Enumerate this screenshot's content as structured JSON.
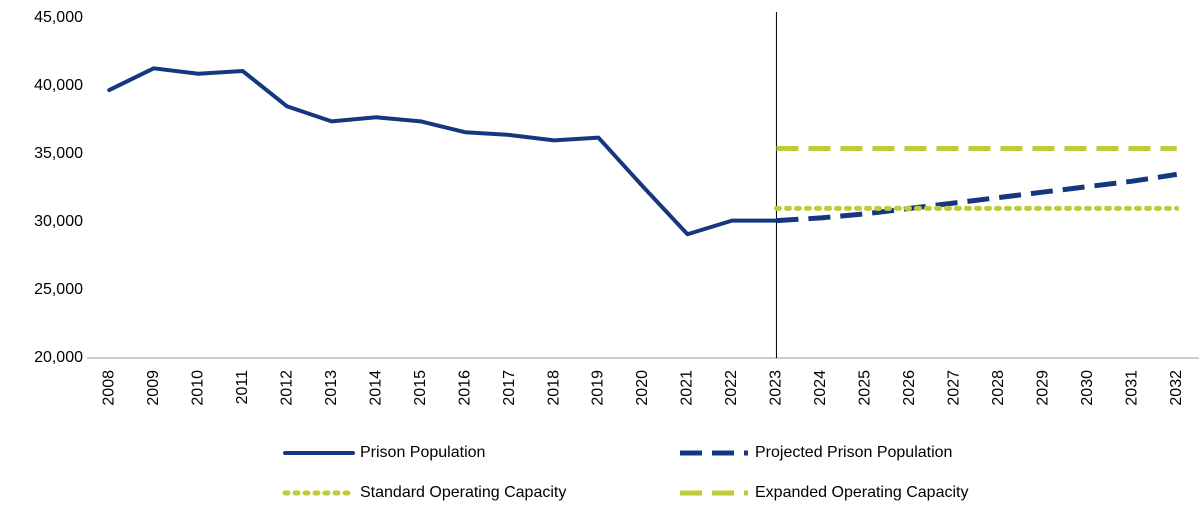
{
  "chart_data": {
    "type": "line",
    "categories": [
      "2008",
      "2009",
      "2010",
      "2011",
      "2012",
      "2013",
      "2014",
      "2015",
      "2016",
      "2017",
      "2018",
      "2019",
      "2020",
      "2021",
      "2022",
      "2023",
      "2024",
      "2025",
      "2026",
      "2027",
      "2028",
      "2029",
      "2030",
      "2031",
      "2032"
    ],
    "series": [
      {
        "name": "Prison Population",
        "color": "#14387f",
        "style": "solid",
        "values": [
          39700,
          41300,
          40900,
          41100,
          38500,
          37400,
          37700,
          37400,
          36600,
          36400,
          36000,
          36200,
          32600,
          29100,
          30100,
          30100,
          null,
          null,
          null,
          null,
          null,
          null,
          null,
          null,
          null
        ]
      },
      {
        "name": "Projected Prison Population",
        "color": "#14387f",
        "style": "dash",
        "values": [
          null,
          null,
          null,
          null,
          null,
          null,
          null,
          null,
          null,
          null,
          null,
          null,
          null,
          null,
          null,
          30100,
          30300,
          30600,
          31000,
          31400,
          31800,
          32200,
          32600,
          33000,
          33500
        ]
      },
      {
        "name": "Standard Operating Capacity",
        "color": "#c0cb3b",
        "style": "dot",
        "values": [
          null,
          null,
          null,
          null,
          null,
          null,
          null,
          null,
          null,
          null,
          null,
          null,
          null,
          null,
          null,
          31000,
          31000,
          31000,
          31000,
          31000,
          31000,
          31000,
          31000,
          31000,
          31000
        ]
      },
      {
        "name": "Expanded Operating Capacity",
        "color": "#c0cb3b",
        "style": "dash",
        "values": [
          null,
          null,
          null,
          null,
          null,
          null,
          null,
          null,
          null,
          null,
          null,
          null,
          null,
          null,
          null,
          35400,
          35400,
          35400,
          35400,
          35400,
          35400,
          35400,
          35400,
          35400,
          35400
        ]
      }
    ],
    "ylim": [
      20000,
      45000
    ],
    "yticks": [
      {
        "value": 20000,
        "label": "20,000"
      },
      {
        "value": 25000,
        "label": "25,000"
      },
      {
        "value": 30000,
        "label": "30,000"
      },
      {
        "value": 35000,
        "label": "35,000"
      },
      {
        "value": 40000,
        "label": "40,000"
      },
      {
        "value": 45000,
        "label": "45,000"
      }
    ],
    "grid": false
  }
}
